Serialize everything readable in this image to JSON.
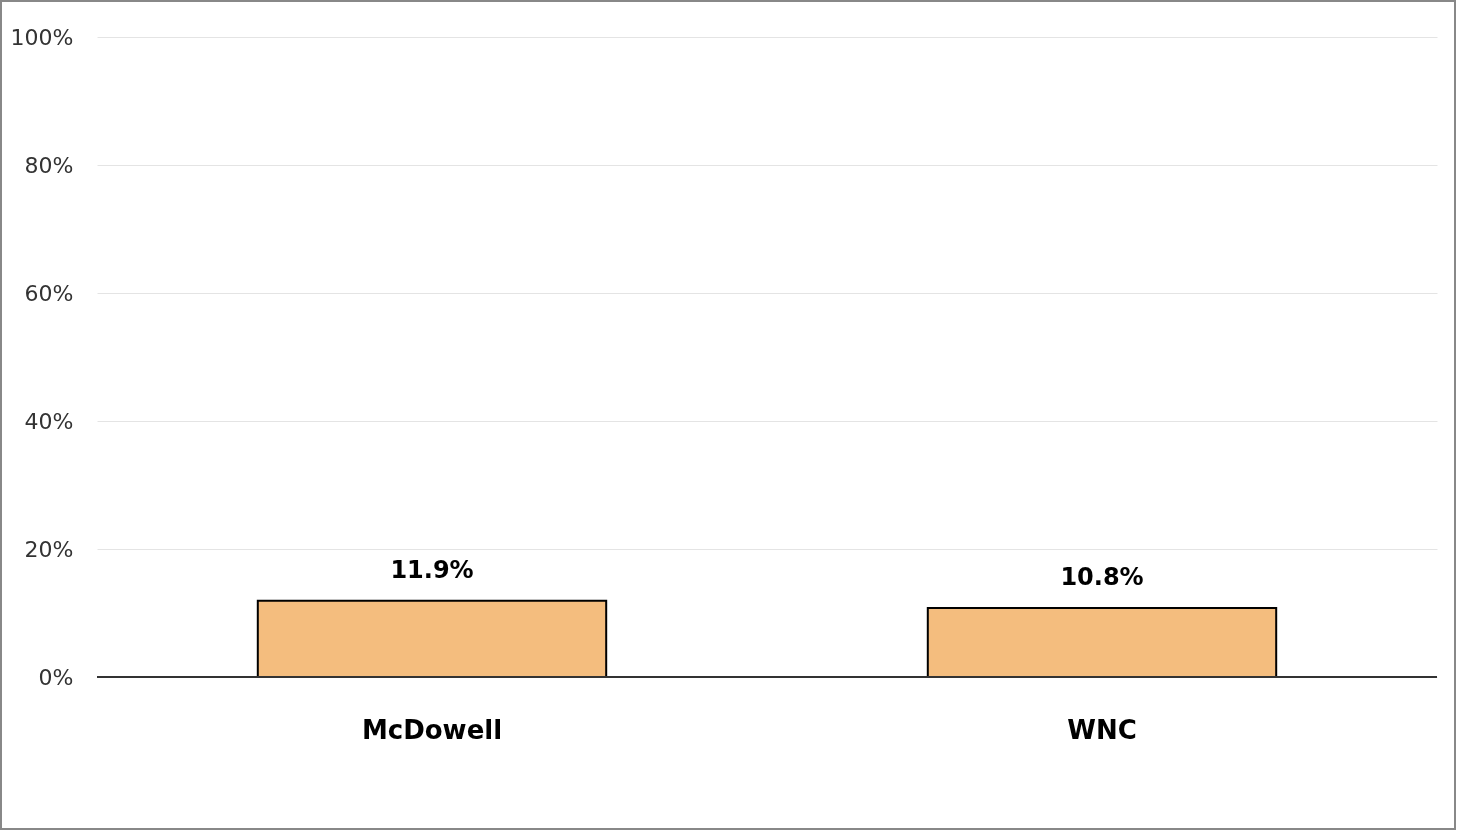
{
  "chart_data": {
    "type": "bar",
    "categories": [
      "McDowell",
      "WNC"
    ],
    "values": [
      11.9,
      10.8
    ],
    "value_labels": [
      "11.9%",
      "10.8%"
    ],
    "color": "#f4bd7e",
    "ylim": [
      0,
      100
    ],
    "yticks": [
      {
        "value": 0,
        "label": "0%"
      },
      {
        "value": 20,
        "label": "20%"
      },
      {
        "value": 40,
        "label": "40%"
      },
      {
        "value": 60,
        "label": "60%"
      },
      {
        "value": 80,
        "label": "80%"
      },
      {
        "value": 100,
        "label": "100%"
      }
    ],
    "grid": "y"
  }
}
